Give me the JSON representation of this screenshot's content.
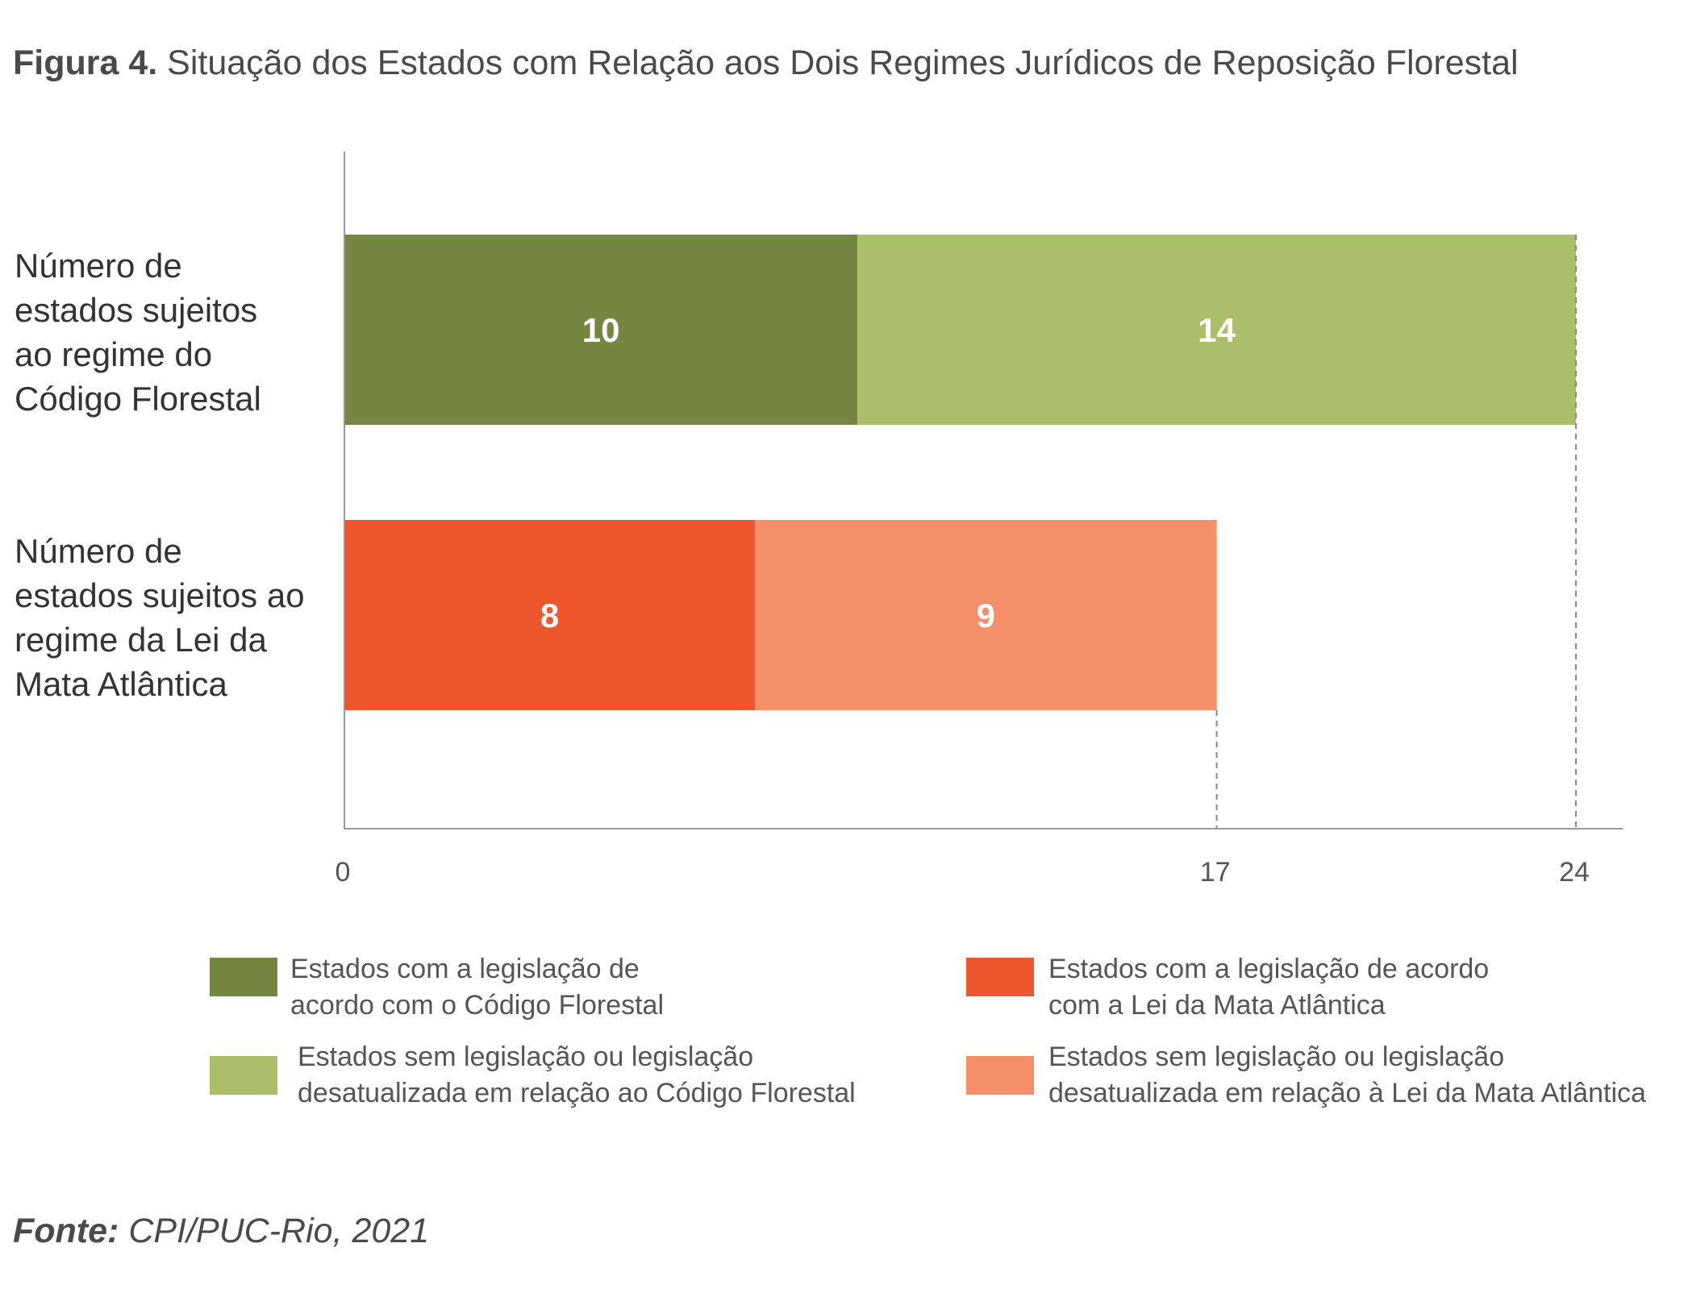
{
  "title": {
    "prefix": "Figura 4.",
    "text": "Situação dos Estados com Relação aos Dois Regimes Jurídicos de Reposição Florestal"
  },
  "chart_data": {
    "type": "bar",
    "orientation": "horizontal",
    "stacked": true,
    "categories": [
      [
        "Número de",
        "estados sujeitos",
        "ao regime do",
        "Código Florestal"
      ],
      [
        "Número de",
        "estados sujeitos ao",
        "regime da Lei da",
        "Mata Atlântica"
      ]
    ],
    "bars": [
      {
        "segments": [
          {
            "value": 10,
            "label": "10",
            "color": "#758641"
          },
          {
            "value": 14,
            "label": "14",
            "color": "#abbf6a"
          }
        ],
        "total": 24
      },
      {
        "segments": [
          {
            "value": 8,
            "label": "8",
            "color": "#ee572d"
          },
          {
            "value": 9,
            "label": "9",
            "color": "#f48f6a"
          }
        ],
        "total": 17
      }
    ],
    "xlim": [
      0,
      24
    ],
    "x_ticks": [
      "0",
      "17",
      "24"
    ],
    "x_tick_values": [
      0,
      17,
      24
    ],
    "reference_lines": [
      17,
      24
    ],
    "grid": false,
    "legend": {
      "placement": "bottom",
      "entries": [
        {
          "lines": [
            "Estados com a legislação de",
            "acordo com o Código Florestal"
          ],
          "color": "#758641"
        },
        {
          "lines": [
            "Estados sem legislação ou legislação",
            "desatualizada em relação ao Código Florestal"
          ],
          "color": "#abbf6a"
        },
        {
          "lines": [
            "Estados com a legislação de acordo",
            "com a Lei da Mata Atlântica"
          ],
          "color": "#ee572d"
        },
        {
          "lines": [
            "Estados sem legislação ou legislação",
            "desatualizada em relação à Lei da Mata Atlântica"
          ],
          "color": "#f48f6a"
        }
      ]
    }
  },
  "source": {
    "prefix": "Fonte:",
    "text": "CPI/PUC-Rio, 2021"
  }
}
